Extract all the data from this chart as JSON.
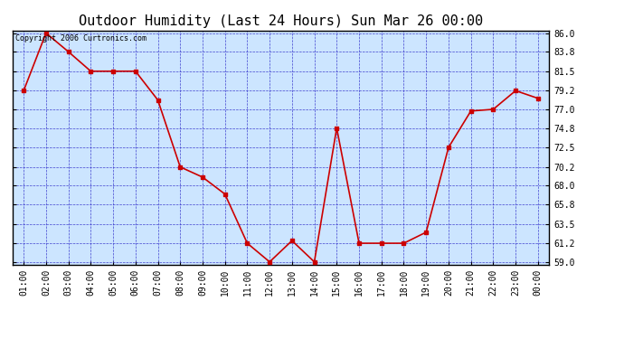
{
  "title": "Outdoor Humidity (Last 24 Hours) Sun Mar 26 00:00",
  "copyright": "Copyright 2006 Curtronics.com",
  "x_labels": [
    "01:00",
    "02:00",
    "03:00",
    "04:00",
    "05:00",
    "06:00",
    "07:00",
    "08:00",
    "09:00",
    "10:00",
    "11:00",
    "12:00",
    "13:00",
    "14:00",
    "15:00",
    "16:00",
    "17:00",
    "18:00",
    "19:00",
    "20:00",
    "21:00",
    "22:00",
    "23:00",
    "00:00"
  ],
  "y_values": [
    79.2,
    86.0,
    83.8,
    81.5,
    81.5,
    81.5,
    78.1,
    70.2,
    69.0,
    67.0,
    61.2,
    59.0,
    61.5,
    59.0,
    74.8,
    61.2,
    61.2,
    61.2,
    62.5,
    72.5,
    76.8,
    77.0,
    79.2,
    78.3
  ],
  "line_color": "#cc0000",
  "marker": "s",
  "marker_size": 2.5,
  "line_width": 1.2,
  "fig_bg_color": "#ffffff",
  "plot_bg_color": "#cce5ff",
  "grid_color": "#3333cc",
  "border_color": "#000000",
  "y_min": 59.0,
  "y_max": 86.0,
  "y_ticks": [
    59.0,
    61.2,
    63.5,
    65.8,
    68.0,
    70.2,
    72.5,
    74.8,
    77.0,
    79.2,
    81.5,
    83.8,
    86.0
  ],
  "title_fontsize": 11,
  "copyright_fontsize": 6,
  "tick_fontsize": 7
}
